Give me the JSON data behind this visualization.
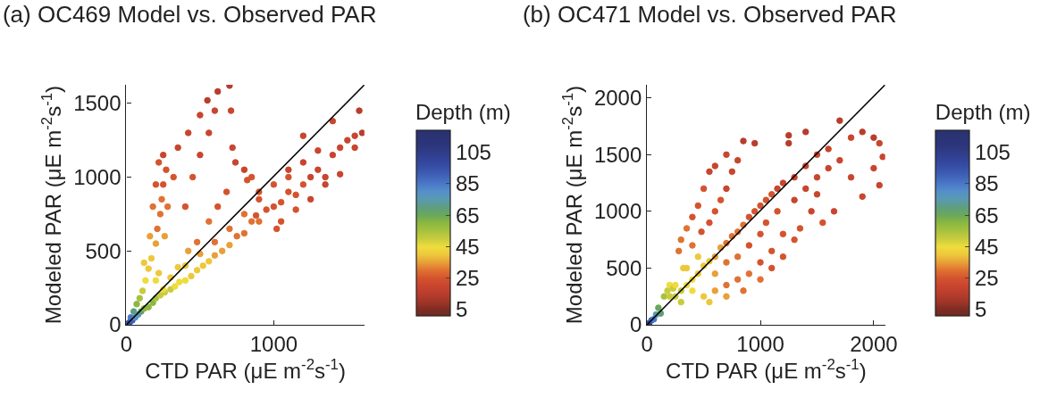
{
  "chart_data": [
    {
      "type": "scatter",
      "title": "(a) OC469 Model vs. Observed PAR",
      "xlabel": "CTD PAR (μE m$^{-2}$s$^{-1}$)",
      "ylabel": "Modeled PAR (μE m$^{-2}$s$^{-1}$)",
      "clabel": "Depth (m)",
      "xlim": [
        0,
        1615
      ],
      "ylim": [
        0,
        1625
      ],
      "xticks": [
        0,
        1000
      ],
      "yticks": [
        0,
        500,
        1000,
        1500
      ],
      "clim": [
        1,
        119
      ],
      "cticks": [
        5,
        25,
        45,
        65,
        85,
        105
      ],
      "grid": false,
      "series": [
        {
          "type": "scatter",
          "marker": "circle",
          "x": [
            5,
            15,
            25,
            40,
            30,
            60,
            80,
            50,
            100,
            120,
            70,
            150,
            90,
            180,
            200,
            110,
            230,
            260,
            130,
            300,
            330,
            150,
            360,
            400,
            170,
            440,
            480,
            200,
            520,
            560,
            210,
            600,
            650,
            230,
            700,
            750,
            240,
            800,
            850,
            250,
            900,
            950,
            270,
            1000,
            1050,
            250,
            1100,
            1150,
            1200,
            1250,
            1300,
            1350,
            1400,
            1450,
            1500,
            1550,
            1600,
            1580,
            1400,
            1300,
            1200,
            1100,
            1000,
            900,
            800,
            700,
            600,
            500,
            400,
            300,
            1050,
            1150,
            1250,
            1350,
            1450,
            1550,
            1020,
            880,
            1100,
            1200,
            120,
            160,
            180,
            200,
            220,
            280,
            320,
            350,
            420,
            500,
            550,
            620,
            700,
            710,
            720,
            740,
            800,
            850,
            900,
            820,
            680,
            620,
            560,
            480,
            420,
            350,
            260,
            200,
            400,
            450,
            500,
            560,
            600,
            220,
            250
          ],
          "values": [
            5,
            10,
            20,
            30,
            50,
            50,
            70,
            90,
            90,
            110,
            140,
            120,
            180,
            150,
            180,
            230,
            200,
            220,
            300,
            240,
            260,
            380,
            290,
            300,
            450,
            330,
            370,
            550,
            400,
            430,
            650,
            470,
            500,
            750,
            540,
            600,
            850,
            620,
            700,
            950,
            700,
            780,
            1050,
            800,
            830,
            1150,
            900,
            880,
            950,
            1000,
            1050,
            1000,
            1150,
            1200,
            1250,
            1280,
            1300,
            1450,
            1380,
            1180,
            1100,
            1000,
            950,
            850,
            750,
            650,
            560,
            480,
            400,
            320,
            700,
            780,
            850,
            950,
            1020,
            1200,
            650,
            740,
            1050,
            1280,
            420,
            600,
            800,
            950,
            1100,
            800,
            1000,
            1200,
            1300,
            1420,
            1520,
            1580,
            1620,
            1450,
            1200,
            1100,
            1050,
            1000,
            900,
            980,
            900,
            800,
            700,
            560,
            500,
            390,
            600,
            300,
            800,
            1000,
            1150,
            1300,
            1450,
            350,
            240
          ],
          "cvalues": [
            110,
            100,
            95,
            90,
            85,
            80,
            75,
            70,
            70,
            60,
            60,
            60,
            55,
            60,
            55,
            50,
            50,
            50,
            45,
            50,
            45,
            40,
            45,
            45,
            40,
            40,
            40,
            35,
            40,
            40,
            30,
            35,
            35,
            30,
            35,
            30,
            30,
            30,
            30,
            25,
            30,
            25,
            25,
            25,
            25,
            20,
            25,
            25,
            25,
            20,
            20,
            20,
            20,
            20,
            20,
            20,
            15,
            15,
            20,
            20,
            20,
            25,
            25,
            25,
            30,
            30,
            30,
            35,
            40,
            40,
            25,
            25,
            20,
            20,
            20,
            20,
            25,
            25,
            20,
            20,
            40,
            35,
            30,
            25,
            25,
            30,
            25,
            20,
            20,
            20,
            15,
            15,
            15,
            20,
            20,
            20,
            20,
            25,
            25,
            25,
            25,
            25,
            30,
            30,
            35,
            40,
            35,
            45,
            25,
            25,
            20,
            20,
            20,
            40,
            45
          ],
          "colors": [
            "#2c357a",
            "#33449a",
            "#3850a8",
            "#3f62b8",
            "#4a78c8",
            "#5590c8",
            "#5a9ab0",
            "#5e9e80",
            "#5e9e80",
            "#8cb83f",
            "#8cb83f",
            "#8cb83f",
            "#a6c23f",
            "#8cb83f",
            "#a6c23f",
            "#c8cc3e",
            "#c8cc3e",
            "#c8cc3e",
            "#eedc3c",
            "#c8cc3e",
            "#eedc3c",
            "#edc83b",
            "#eedc3c",
            "#eedc3c",
            "#edc83b",
            "#edc83b",
            "#edc83b",
            "#e8a038",
            "#edc83b",
            "#edc83b",
            "#e07232",
            "#e8a038",
            "#e8a038",
            "#e07232",
            "#e8a038",
            "#e07232",
            "#e07232",
            "#e07232",
            "#e07232",
            "#d4532e",
            "#e07232",
            "#d4532e",
            "#d4532e",
            "#d4532e",
            "#d4532e",
            "#c8452e",
            "#d4532e",
            "#d4532e",
            "#d4532e",
            "#c8452e",
            "#c8452e",
            "#c8452e",
            "#c8452e",
            "#c8452e",
            "#c8452e",
            "#c8452e",
            "#b83d2c",
            "#b83d2c",
            "#c8452e",
            "#c8452e",
            "#c8452e",
            "#d4532e",
            "#d4532e",
            "#d4532e",
            "#e07232",
            "#e07232",
            "#e07232",
            "#e8a038",
            "#edc83b",
            "#edc83b",
            "#d4532e",
            "#d4532e",
            "#c8452e",
            "#c8452e",
            "#c8452e",
            "#c8452e",
            "#d4532e",
            "#d4532e",
            "#c8452e",
            "#c8452e",
            "#edc83b",
            "#e8a038",
            "#e07232",
            "#d4532e",
            "#d4532e",
            "#e07232",
            "#d4532e",
            "#c8452e",
            "#c8452e",
            "#c8452e",
            "#b83d2c",
            "#b83d2c",
            "#b83d2c",
            "#c8452e",
            "#c8452e",
            "#c8452e",
            "#c8452e",
            "#d4532e",
            "#d4532e",
            "#d4532e",
            "#d4532e",
            "#d4532e",
            "#e07232",
            "#e07232",
            "#e8a038",
            "#edc83b",
            "#e8a038",
            "#eedc3c",
            "#d4532e",
            "#d4532e",
            "#c8452e",
            "#c8452e",
            "#c8452e",
            "#edc83b",
            "#eedc3c"
          ]
        },
        {
          "type": "line",
          "x": [
            0,
            1615
          ],
          "values": [
            0,
            1625
          ],
          "color": "#000000"
        }
      ]
    },
    {
      "type": "scatter",
      "title": "(b) OC471 Model vs. Observed PAR",
      "xlabel": "CTD PAR (μE m$^{-2}$s$^{-1}$)",
      "ylabel": "Modeled PAR (μE m$^{-2}$s$^{-1}$)",
      "clabel": "Depth (m)",
      "xlim": [
        0,
        2100
      ],
      "ylim": [
        0,
        2115
      ],
      "xticks": [
        0,
        1000,
        2000
      ],
      "yticks": [
        0,
        500,
        1000,
        1500,
        2000
      ],
      "clim": [
        1,
        119
      ],
      "cticks": [
        5,
        25,
        45,
        65,
        85,
        105
      ],
      "grid": false,
      "series": [
        {
          "type": "scatter",
          "marker": "circle",
          "x": [
            5,
            20,
            40,
            60,
            80,
            100,
            120,
            150,
            180,
            200,
            230,
            250,
            300,
            350,
            400,
            450,
            500,
            550,
            600,
            650,
            700,
            750,
            800,
            850,
            900,
            950,
            1000,
            1050,
            1100,
            1150,
            1200,
            1300,
            1400,
            1500,
            1600,
            1700,
            1800,
            1900,
            2000,
            2050,
            2080,
            2000,
            2050,
            1900,
            1800,
            1700,
            1650,
            1550,
            1450,
            1350,
            1300,
            1200,
            1100,
            1000,
            900,
            800,
            700,
            600,
            500,
            550,
            700,
            850,
            1000,
            1100,
            1200,
            1300,
            1400,
            1500,
            1600,
            1400,
            1250,
            1500,
            1000,
            900,
            800,
            700,
            600,
            400,
            300,
            350,
            450,
            1150,
            1050,
            300,
            280,
            320,
            350,
            400,
            450,
            500,
            550,
            600,
            700,
            850,
            1250,
            950,
            800,
            750,
            700,
            650,
            600,
            550,
            480,
            400,
            250,
            200
          ],
          "values": [
            5,
            15,
            40,
            50,
            90,
            150,
            100,
            250,
            300,
            350,
            320,
            250,
            300,
            350,
            400,
            450,
            520,
            560,
            600,
            680,
            720,
            780,
            820,
            880,
            950,
            1000,
            1050,
            1100,
            1150,
            1200,
            1250,
            1300,
            1400,
            1500,
            1550,
            1800,
            1650,
            1700,
            1650,
            1600,
            1480,
            1380,
            1230,
            1130,
            1300,
            1450,
            1000,
            900,
            1000,
            850,
            750,
            600,
            650,
            550,
            450,
            400,
            350,
            300,
            250,
            200,
            250,
            300,
            400,
            500,
            800,
            1100,
            1200,
            1300,
            1380,
            1700,
            1600,
            1150,
            800,
            700,
            600,
            550,
            450,
            300,
            200,
            500,
            600,
            1000,
            900,
            750,
            650,
            500,
            850,
            950,
            1050,
            1200,
            1350,
            1400,
            1500,
            1620,
            1670,
            1600,
            1450,
            1350,
            1200,
            1100,
            1000,
            900,
            820,
            700,
            350,
            250
          ],
          "cvalues": [
            110,
            100,
            90,
            85,
            75,
            65,
            70,
            55,
            50,
            45,
            50,
            50,
            50,
            45,
            45,
            40,
            40,
            40,
            35,
            35,
            30,
            30,
            30,
            30,
            25,
            25,
            25,
            25,
            25,
            20,
            20,
            20,
            20,
            20,
            20,
            15,
            20,
            15,
            15,
            20,
            20,
            20,
            20,
            20,
            20,
            20,
            20,
            25,
            20,
            25,
            25,
            25,
            25,
            25,
            30,
            30,
            30,
            35,
            40,
            40,
            35,
            30,
            30,
            25,
            25,
            20,
            20,
            20,
            20,
            15,
            15,
            20,
            25,
            25,
            30,
            30,
            35,
            45,
            50,
            40,
            40,
            25,
            25,
            30,
            30,
            40,
            30,
            25,
            25,
            25,
            20,
            20,
            20,
            15,
            15,
            15,
            20,
            20,
            20,
            25,
            25,
            25,
            25,
            30,
            45,
            50
          ],
          "colors": [
            "#2c357a",
            "#33449a",
            "#3f62b8",
            "#4a78c8",
            "#5a9ab0",
            "#6aa85a",
            "#5e9e80",
            "#a6c23f",
            "#c8cc3e",
            "#eedc3c",
            "#c8cc3e",
            "#c8cc3e",
            "#c8cc3e",
            "#eedc3c",
            "#eedc3c",
            "#edc83b",
            "#edc83b",
            "#edc83b",
            "#e8a038",
            "#e8a038",
            "#e07232",
            "#e07232",
            "#e07232",
            "#e07232",
            "#d4532e",
            "#d4532e",
            "#d4532e",
            "#d4532e",
            "#d4532e",
            "#c8452e",
            "#c8452e",
            "#c8452e",
            "#c8452e",
            "#c8452e",
            "#c8452e",
            "#b83d2c",
            "#c8452e",
            "#b83d2c",
            "#b83d2c",
            "#c8452e",
            "#c8452e",
            "#c8452e",
            "#c8452e",
            "#c8452e",
            "#c8452e",
            "#c8452e",
            "#c8452e",
            "#d4532e",
            "#c8452e",
            "#d4532e",
            "#d4532e",
            "#d4532e",
            "#d4532e",
            "#d4532e",
            "#e07232",
            "#e07232",
            "#e07232",
            "#e8a038",
            "#edc83b",
            "#edc83b",
            "#e8a038",
            "#e07232",
            "#e07232",
            "#d4532e",
            "#d4532e",
            "#c8452e",
            "#c8452e",
            "#c8452e",
            "#c8452e",
            "#b83d2c",
            "#b83d2c",
            "#c8452e",
            "#d4532e",
            "#d4532e",
            "#e07232",
            "#e07232",
            "#e8a038",
            "#eedc3c",
            "#c8cc3e",
            "#edc83b",
            "#edc83b",
            "#d4532e",
            "#d4532e",
            "#e07232",
            "#e07232",
            "#edc83b",
            "#e07232",
            "#d4532e",
            "#d4532e",
            "#d4532e",
            "#c8452e",
            "#c8452e",
            "#c8452e",
            "#b83d2c",
            "#b83d2c",
            "#b83d2c",
            "#c8452e",
            "#c8452e",
            "#c8452e",
            "#d4532e",
            "#d4532e",
            "#d4532e",
            "#d4532e",
            "#e07232",
            "#eedc3c",
            "#c8cc3e"
          ]
        },
        {
          "type": "line",
          "x": [
            0,
            2100
          ],
          "values": [
            0,
            2115
          ],
          "color": "#000000"
        }
      ]
    }
  ]
}
